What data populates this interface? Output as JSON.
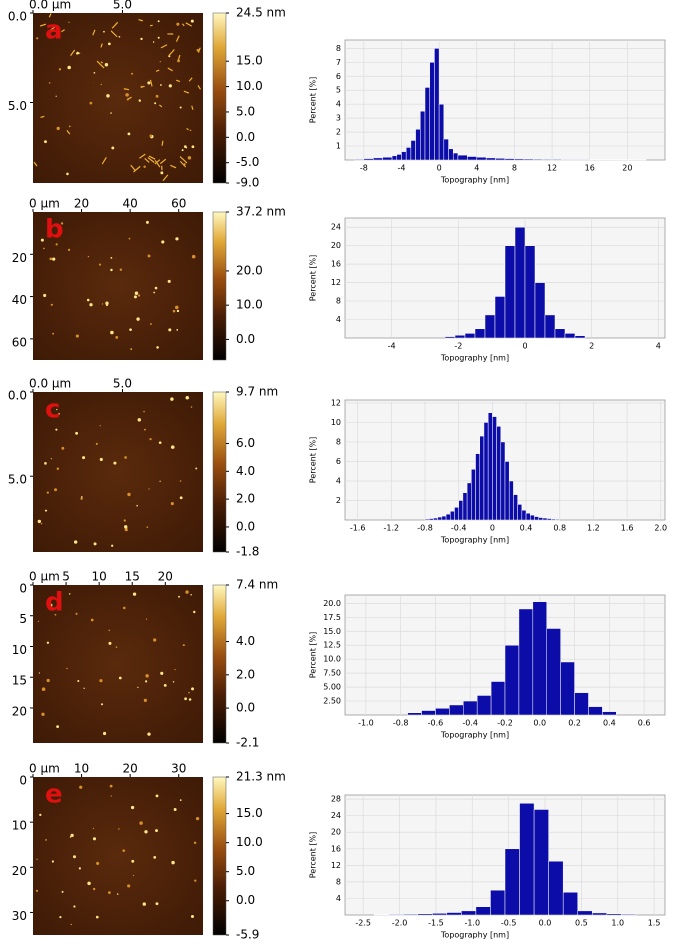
{
  "chart_data": [
    {
      "type": "histogram",
      "xlabel": "Topography [nm]",
      "ylabel": "Percent [%]",
      "color": "#0c0ca8",
      "grid": true,
      "bins": [
        -9,
        -8,
        -7,
        -6,
        -5,
        -4.5,
        -4,
        -3.5,
        -3,
        -2.5,
        -2,
        -1.5,
        -1,
        -0.5,
        0,
        0.5,
        1,
        1.5,
        2,
        3,
        4,
        5,
        6,
        7,
        8,
        9,
        10,
        11,
        12,
        13,
        14,
        15,
        16,
        17,
        18,
        19,
        20,
        21,
        22
      ],
      "values": [
        0.05,
        0.1,
        0.15,
        0.2,
        0.3,
        0.4,
        0.6,
        0.9,
        1.4,
        2.2,
        3.5,
        5.2,
        7.0,
        8.0,
        4.0,
        1.5,
        0.8,
        0.5,
        0.35,
        0.25,
        0.2,
        0.15,
        0.12,
        0.1,
        0.08,
        0.07,
        0.06,
        0.05,
        0.05,
        0.04,
        0.04,
        0.04,
        0.03,
        0.03,
        0.03,
        0.03,
        0.02,
        0.02
      ],
      "xlim": [
        -10,
        24
      ],
      "ylim": [
        0,
        8.6
      ],
      "xticks": [
        -8,
        -4,
        0,
        4,
        8,
        12,
        16,
        20
      ],
      "yticks": [
        1,
        2,
        3,
        4,
        5,
        6,
        7,
        8
      ]
    },
    {
      "type": "histogram",
      "xlabel": "Topography [nm]",
      "ylabel": "Percent [%]",
      "color": "#0c0ca8",
      "grid": true,
      "bins": [
        -2.4,
        -2.1,
        -1.8,
        -1.5,
        -1.2,
        -0.9,
        -0.6,
        -0.3,
        0,
        0.3,
        0.6,
        0.9,
        1.2,
        1.5,
        1.8
      ],
      "values": [
        0.3,
        0.6,
        1,
        2,
        5,
        9,
        20,
        24,
        20,
        12,
        5,
        2,
        1,
        0.5
      ],
      "xlim": [
        -5.4,
        4.2
      ],
      "ylim": [
        0,
        26
      ],
      "xticks": [
        -4,
        -2,
        0,
        2,
        4
      ],
      "yticks": [
        4,
        8,
        12,
        16,
        20,
        24
      ]
    },
    {
      "type": "histogram",
      "xlabel": "Topography [nm]",
      "ylabel": "Percent [%]",
      "color": "#0c0ca8",
      "grid": true,
      "bins": [
        -0.8,
        -0.75,
        -0.7,
        -0.65,
        -0.6,
        -0.55,
        -0.5,
        -0.45,
        -0.4,
        -0.35,
        -0.3,
        -0.25,
        -0.2,
        -0.15,
        -0.1,
        -0.05,
        0,
        0.05,
        0.1,
        0.15,
        0.2,
        0.25,
        0.3,
        0.35,
        0.4,
        0.45,
        0.5,
        0.55,
        0.6,
        0.65,
        0.7,
        0.75,
        0.8
      ],
      "values": [
        0.1,
        0.15,
        0.2,
        0.3,
        0.4,
        0.6,
        0.9,
        1.3,
        2.0,
        2.8,
        3.8,
        5.2,
        6.8,
        8.6,
        10.0,
        11.0,
        10.6,
        9.6,
        8.0,
        6.0,
        4.0,
        2.6,
        1.6,
        1.0,
        0.7,
        0.5,
        0.35,
        0.25,
        0.2,
        0.15,
        0.1,
        0.08
      ],
      "xlim": [
        -1.75,
        2.05
      ],
      "ylim": [
        0,
        12.3
      ],
      "xticks": [
        -1.6,
        -1.2,
        -0.8,
        -0.4,
        0,
        0.4,
        0.8,
        1.2,
        1.6,
        {
          "value": 2,
          "label": "2.0"
        }
      ],
      "yticks": [
        2,
        4,
        6,
        8,
        10,
        12
      ]
    },
    {
      "type": "histogram",
      "xlabel": "Topography [nm]",
      "ylabel": "Percent [%]",
      "color": "#0c0ca8",
      "grid": true,
      "bins": [
        -0.76,
        -0.68,
        -0.6,
        -0.52,
        -0.44,
        -0.36,
        -0.28,
        -0.2,
        -0.12,
        -0.04,
        0.04,
        0.12,
        0.2,
        0.28,
        0.36,
        0.44
      ],
      "values": [
        0.4,
        0.8,
        1.2,
        1.8,
        2.5,
        3.5,
        6,
        12.5,
        19,
        20.3,
        15.5,
        9.5,
        4,
        1.5,
        0.6
      ],
      "xlim": [
        -1.12,
        0.72
      ],
      "ylim": [
        0,
        21.5
      ],
      "xticks": [
        {
          "value": -1,
          "label": "-1.0"
        },
        -0.8,
        -0.6,
        -0.4,
        -0.2,
        {
          "value": 0,
          "label": "0.0"
        },
        0.2,
        0.4,
        0.6
      ],
      "yticks": [
        {
          "value": 2.5,
          "label": "2.50"
        },
        {
          "value": 5,
          "label": "5.00"
        },
        {
          "value": 7.5,
          "label": "7.50"
        },
        {
          "value": 10,
          "label": "10.0"
        },
        12.5,
        {
          "value": 15,
          "label": "15.0"
        },
        17.5,
        {
          "value": 20,
          "label": "20.0"
        }
      ]
    },
    {
      "type": "histogram",
      "xlabel": "Topography [nm]",
      "ylabel": "Percent [%]",
      "color": "#0c0ca8",
      "grid": true,
      "bins": [
        -2.35,
        -2.15,
        -1.95,
        -1.75,
        -1.55,
        -1.35,
        -1.15,
        -0.95,
        -0.75,
        -0.55,
        -0.35,
        -0.15,
        0.05,
        0.25,
        0.45,
        0.65,
        0.85,
        1.05,
        1.25
      ],
      "values": [
        0.1,
        0.15,
        0.2,
        0.3,
        0.4,
        0.6,
        1.0,
        2.0,
        6.0,
        16.0,
        27.0,
        25.5,
        13.0,
        5.5,
        1.0,
        0.5,
        0.3,
        0.2
      ],
      "xlim": [
        -2.75,
        1.65
      ],
      "ylim": [
        0,
        29
      ],
      "xticks": [
        -2.5,
        {
          "value": -2,
          "label": "-2.0"
        },
        -1.5,
        {
          "value": -1,
          "label": "-1.0"
        },
        -0.5,
        {
          "value": 0,
          "label": "0.0"
        },
        0.5,
        {
          "value": 1,
          "label": "1.0"
        },
        1.5
      ],
      "yticks": [
        4,
        8,
        12,
        16,
        20,
        24,
        28
      ]
    }
  ],
  "images": [
    {
      "label": "a",
      "xlim": [
        0,
        9.5
      ],
      "ylim": [
        0,
        9.5
      ],
      "xticks": [
        {
          "value": 0,
          "label": "0.0 µm"
        },
        {
          "value": 5,
          "label": "5.0"
        }
      ],
      "yticks": [
        {
          "value": 0,
          "label": "0.0"
        },
        {
          "value": 5,
          "label": "5.0"
        }
      ],
      "colorbar": {
        "lim": [
          -9,
          24.5
        ],
        "ticks": [
          {
            "value": 24.5,
            "label": "24.5 nm"
          },
          {
            "value": 15,
            "label": "15.0"
          },
          {
            "value": 10,
            "label": "10.0"
          },
          {
            "value": 5,
            "label": "5.0"
          },
          {
            "value": 0,
            "label": "0.0"
          },
          {
            "value": -5,
            "label": "-5.0"
          },
          {
            "value": -9,
            "label": "-9.0"
          }
        ]
      }
    },
    {
      "label": "b",
      "xlim": [
        0,
        70
      ],
      "ylim": [
        0,
        70
      ],
      "xticks": [
        {
          "value": 0,
          "label": "0 µm"
        },
        20,
        40,
        60
      ],
      "yticks": [
        20,
        40,
        60
      ],
      "colorbar": {
        "lim": [
          -6,
          37.2
        ],
        "ticks": [
          {
            "value": 37.2,
            "label": "37.2 nm"
          },
          {
            "value": 20,
            "label": "20.0"
          },
          {
            "value": 10,
            "label": "10.0"
          },
          {
            "value": 0,
            "label": "0.0"
          }
        ]
      }
    },
    {
      "label": "c",
      "xlim": [
        0,
        9.5
      ],
      "ylim": [
        0,
        9.5
      ],
      "xticks": [
        {
          "value": 0,
          "label": "0.0 µm"
        },
        {
          "value": 5,
          "label": "5.0"
        }
      ],
      "yticks": [
        {
          "value": 0,
          "label": "0.0"
        },
        {
          "value": 5,
          "label": "5.0"
        }
      ],
      "colorbar": {
        "lim": [
          -1.8,
          9.7
        ],
        "ticks": [
          {
            "value": 9.7,
            "label": "9.7 nm"
          },
          {
            "value": 6,
            "label": "6.0"
          },
          {
            "value": 4,
            "label": "4.0"
          },
          {
            "value": 2,
            "label": "2.0"
          },
          {
            "value": 0,
            "label": "0.0"
          },
          -1.8
        ]
      }
    },
    {
      "label": "d",
      "xlim": [
        0,
        25.7
      ],
      "ylim": [
        0,
        25.7
      ],
      "xticks": [
        {
          "value": 0,
          "label": "0 µm"
        },
        5,
        10,
        15,
        20
      ],
      "yticks": [
        0,
        5,
        10,
        15,
        20
      ],
      "colorbar": {
        "lim": [
          -2.1,
          7.4
        ],
        "ticks": [
          {
            "value": 7.4,
            "label": "7.4 nm"
          },
          {
            "value": 4,
            "label": "4.0"
          },
          {
            "value": 2,
            "label": "2.0"
          },
          {
            "value": 0,
            "label": "0.0"
          },
          -2.1
        ]
      }
    },
    {
      "label": "e",
      "xlim": [
        0,
        35
      ],
      "ylim": [
        0,
        35
      ],
      "xticks": [
        {
          "value": 0,
          "label": "0 µm"
        },
        10,
        20,
        30
      ],
      "yticks": [
        0,
        10,
        20,
        30
      ],
      "colorbar": {
        "lim": [
          -5.9,
          21.3
        ],
        "ticks": [
          {
            "value": 21.3,
            "label": "21.3 nm"
          },
          {
            "value": 15,
            "label": "15.0"
          },
          {
            "value": 10,
            "label": "10.0"
          },
          {
            "value": 5,
            "label": "5.0"
          },
          {
            "value": 0,
            "label": "0.0"
          },
          -5.9
        ]
      }
    }
  ]
}
